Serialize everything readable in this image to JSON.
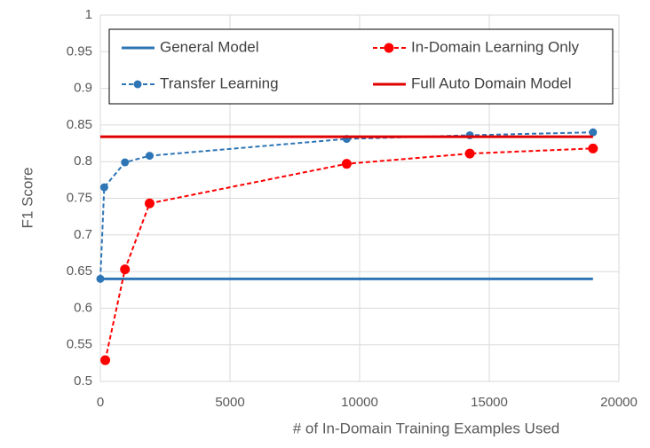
{
  "chart_data": {
    "type": "line",
    "xlabel": "# of In-Domain Training Examples Used",
    "ylabel": "F1 Score",
    "xlim": [
      0,
      20000
    ],
    "xticks": [
      0,
      5000,
      10000,
      15000,
      20000
    ],
    "ylim": [
      0.5,
      1
    ],
    "yticks": [
      0.5,
      0.55,
      0.6,
      0.65,
      0.7,
      0.75,
      0.8,
      0.85,
      0.9,
      0.95,
      1
    ],
    "grid": true,
    "legend": "top",
    "series": [
      {
        "name": "General Model",
        "color": "#2e75b6",
        "dashed": false,
        "markers": false,
        "x": [
          0,
          19000
        ],
        "values": [
          0.64,
          0.64
        ]
      },
      {
        "name": "In-Domain Learning Only",
        "color": "#ff0000",
        "dashed": true,
        "markers": true,
        "x": [
          190,
          950,
          1900,
          9500,
          14250,
          19000
        ],
        "values": [
          0.529,
          0.653,
          0.743,
          0.797,
          0.811,
          0.818
        ]
      },
      {
        "name": "Transfer Learning",
        "color": "#2e75b6",
        "dashed": true,
        "markers": true,
        "x": [
          0,
          150,
          950,
          1900,
          9500,
          14250,
          19000
        ],
        "values": [
          0.64,
          0.765,
          0.799,
          0.808,
          0.831,
          0.836,
          0.84
        ]
      },
      {
        "name": "Full Auto Domain Model",
        "color": "#e00000",
        "dashed": false,
        "markers": false,
        "x": [
          0,
          19000
        ],
        "values": [
          0.834,
          0.834
        ]
      }
    ]
  }
}
